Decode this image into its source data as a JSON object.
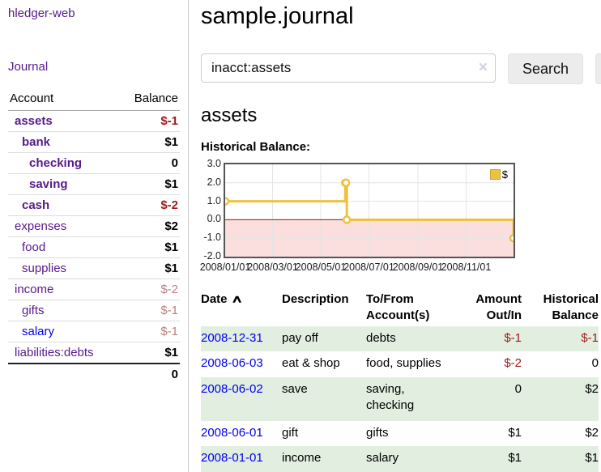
{
  "brand": "hledger-web",
  "colors": {
    "link-purple": "#551a8b",
    "link-blue": "#0000ee",
    "negative-strong": "#9e1a1a",
    "negative-soft": "#bc7f7f",
    "row-green": "#e1eee0",
    "chart-gold": "#edc240"
  },
  "sidebar": {
    "journal_link": "Journal",
    "accounts": {
      "headers": {
        "account": "Account",
        "balance": "Balance"
      },
      "rows": [
        {
          "name": "assets",
          "indent": 0,
          "bold": true,
          "link_color": "purple",
          "balance": "$-1",
          "balance_class": "neg"
        },
        {
          "name": "bank",
          "indent": 1,
          "bold": true,
          "link_color": "purple",
          "balance": "$1",
          "balance_class": ""
        },
        {
          "name": "checking",
          "indent": 2,
          "bold": true,
          "link_color": "purple",
          "balance": "0",
          "balance_class": ""
        },
        {
          "name": "saving",
          "indent": 2,
          "bold": true,
          "link_color": "purple",
          "balance": "$1",
          "balance_class": ""
        },
        {
          "name": "cash",
          "indent": 1,
          "bold": true,
          "link_color": "purple",
          "balance": "$-2",
          "balance_class": "neg"
        },
        {
          "name": "expenses",
          "indent": 0,
          "bold": false,
          "link_color": "purple",
          "balance": "$2",
          "balance_class": ""
        },
        {
          "name": "food",
          "indent": 1,
          "bold": false,
          "link_color": "purple",
          "balance": "$1",
          "balance_class": ""
        },
        {
          "name": "supplies",
          "indent": 1,
          "bold": false,
          "link_color": "purple",
          "balance": "$1",
          "balance_class": ""
        },
        {
          "name": "income",
          "indent": 0,
          "bold": false,
          "link_color": "purple",
          "balance": "$-2",
          "balance_class": "neg-soft"
        },
        {
          "name": "gifts",
          "indent": 1,
          "bold": false,
          "link_color": "purple",
          "balance": "$-1",
          "balance_class": "neg-soft"
        },
        {
          "name": "salary",
          "indent": 1,
          "bold": false,
          "link_color": "blue",
          "balance": "$-1",
          "balance_class": "neg-soft"
        },
        {
          "name": "liabilities:debts",
          "indent": 0,
          "bold": false,
          "link_color": "purple",
          "balance": "$1",
          "balance_class": ""
        }
      ],
      "total": "0"
    }
  },
  "header": {
    "title": "sample.journal"
  },
  "search": {
    "value": "inacct:assets",
    "clear_icon": "×",
    "search_label": "Search",
    "help_label": "?"
  },
  "account_page": {
    "heading": "assets",
    "chart_label": "Historical Balance:"
  },
  "chart_data": {
    "type": "line",
    "title": "Historical Balance:",
    "step": true,
    "xlim": [
      "2008-01-01",
      "2008-12-31"
    ],
    "ylim": [
      -2,
      3
    ],
    "y_ticks": [
      3.0,
      2.0,
      1.0,
      0.0,
      -1.0,
      -2.0
    ],
    "x_ticks": [
      [
        "2008-01-01",
        "2008/01/01"
      ],
      [
        "2008-03-01",
        "2008/03/01"
      ],
      [
        "2008-05-01",
        "2008/05/01"
      ],
      [
        "2008-07-01",
        "2008/07/01"
      ],
      [
        "2008-09-01",
        "2008/09/01"
      ],
      [
        "2008-11-01",
        "2008/11/01"
      ]
    ],
    "series": [
      {
        "name": "$",
        "color": "#edc240",
        "points": [
          [
            "2008-01-01",
            1
          ],
          [
            "2008-06-01",
            2
          ],
          [
            "2008-06-02",
            2
          ],
          [
            "2008-06-03",
            0
          ],
          [
            "2008-12-31",
            -1
          ]
        ]
      }
    ],
    "grid": true,
    "grid_color": "#e4e4e4",
    "negative_region_color": "#fbdede",
    "zero_line_color": "#8b1a1a",
    "legend_position": "top-right"
  },
  "register": {
    "headers": {
      "date": "Date",
      "sort_indicator": "∧",
      "description": "Description",
      "accounts": "To/From Account(s)",
      "amount": "Amount Out/In",
      "balance": "Historical Balance"
    },
    "rows": [
      {
        "date": "2008-12-31",
        "description": "pay off",
        "accounts": "debts",
        "amount": "$-1",
        "amount_class": "neg",
        "balance": "$-1",
        "balance_class": "neg",
        "shade": true
      },
      {
        "date": "2008-06-03",
        "description": "eat & shop",
        "accounts": "food, supplies",
        "amount": "$-2",
        "amount_class": "neg",
        "balance": "0",
        "balance_class": "",
        "shade": false
      },
      {
        "date": "2008-06-02",
        "description": "save",
        "accounts": "saving, checking",
        "amount": "0",
        "amount_class": "",
        "balance": "$2",
        "balance_class": "",
        "shade": true
      },
      {
        "date": "2008-06-01",
        "description": "gift",
        "accounts": "gifts",
        "amount": "$1",
        "amount_class": "",
        "balance": "$2",
        "balance_class": "",
        "shade": false
      },
      {
        "date": "2008-01-01",
        "description": "income",
        "accounts": "salary",
        "amount": "$1",
        "amount_class": "",
        "balance": "$1",
        "balance_class": "",
        "shade": true
      }
    ]
  }
}
